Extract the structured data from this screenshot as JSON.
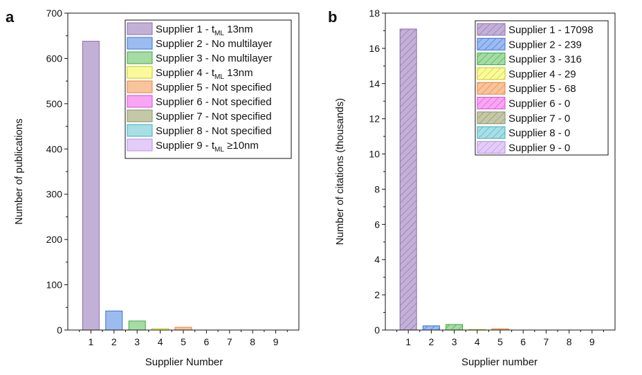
{
  "chart_data": [
    {
      "panel": "a",
      "type": "bar",
      "categories": [
        "1",
        "2",
        "3",
        "4",
        "5",
        "6",
        "7",
        "8",
        "9"
      ],
      "values": [
        638,
        42,
        20,
        3,
        6,
        0,
        0,
        0,
        0
      ],
      "xlabel": "Supplier Number",
      "ylabel": "Number of publications",
      "ylim": [
        0,
        700
      ],
      "yticks": [
        "0",
        "100",
        "200",
        "300",
        "400",
        "500",
        "600",
        "700"
      ],
      "legend_position": "top-right",
      "legend": [
        {
          "name": "Supplier 1 - t",
          "sub": "ML",
          "suffix": " 13nm"
        },
        {
          "name": "Supplier 2 - No multilayer",
          "sub": "",
          "suffix": ""
        },
        {
          "name": "Supplier 3 - No multilayer",
          "sub": "",
          "suffix": ""
        },
        {
          "name": "Supplier 4 - t",
          "sub": "ML",
          "suffix": " 13nm"
        },
        {
          "name": "Supplier 5 - Not specified",
          "sub": "",
          "suffix": ""
        },
        {
          "name": "Supplier 6 - Not specified",
          "sub": "",
          "suffix": ""
        },
        {
          "name": "Supplier 7 - Not specified",
          "sub": "",
          "suffix": ""
        },
        {
          "name": "Supplier 8 - Not specified",
          "sub": "",
          "suffix": ""
        },
        {
          "name": "Supplier 9 - t",
          "sub": "ML",
          "suffix": " ≥10nm"
        }
      ]
    },
    {
      "panel": "b",
      "type": "bar",
      "categories": [
        "1",
        "2",
        "3",
        "4",
        "5",
        "6",
        "7",
        "8",
        "9"
      ],
      "values": [
        17.098,
        0.239,
        0.316,
        0.029,
        0.068,
        0,
        0,
        0,
        0
      ],
      "xlabel": "Supplier number",
      "ylabel": "Number of citations (thousands)",
      "ylim": [
        0,
        18
      ],
      "yticks": [
        "0",
        "2",
        "4",
        "6",
        "8",
        "10",
        "12",
        "14",
        "16",
        "18"
      ],
      "hatched": true,
      "legend_position": "top-right",
      "legend": [
        {
          "name": "Supplier 1 - 17098",
          "sub": "",
          "suffix": ""
        },
        {
          "name": "Supplier 2 - 239",
          "sub": "",
          "suffix": ""
        },
        {
          "name": "Supplier 3 - 316",
          "sub": "",
          "suffix": ""
        },
        {
          "name": "Supplier 4 - 29",
          "sub": "",
          "suffix": ""
        },
        {
          "name": "Supplier 5 - 68",
          "sub": "",
          "suffix": ""
        },
        {
          "name": "Supplier 6 - 0",
          "sub": "",
          "suffix": ""
        },
        {
          "name": "Supplier 7 - 0",
          "sub": "",
          "suffix": ""
        },
        {
          "name": "Supplier 8 - 0",
          "sub": "",
          "suffix": ""
        },
        {
          "name": "Supplier 9 - 0",
          "sub": "",
          "suffix": ""
        }
      ]
    }
  ],
  "colors": {
    "fills": [
      "#c3b0d6",
      "#9cbcf0",
      "#a4dca4",
      "#fafa9c",
      "#f8c49c",
      "#f8a6f4",
      "#c4c8a6",
      "#a8dee4",
      "#e4ccfa"
    ],
    "strokes": [
      "#8e6bb0",
      "#3a6fd8",
      "#3ea83e",
      "#c8c820",
      "#e8803a",
      "#d84ed0",
      "#8a8e64",
      "#3aaec0",
      "#b48ee0"
    ]
  }
}
